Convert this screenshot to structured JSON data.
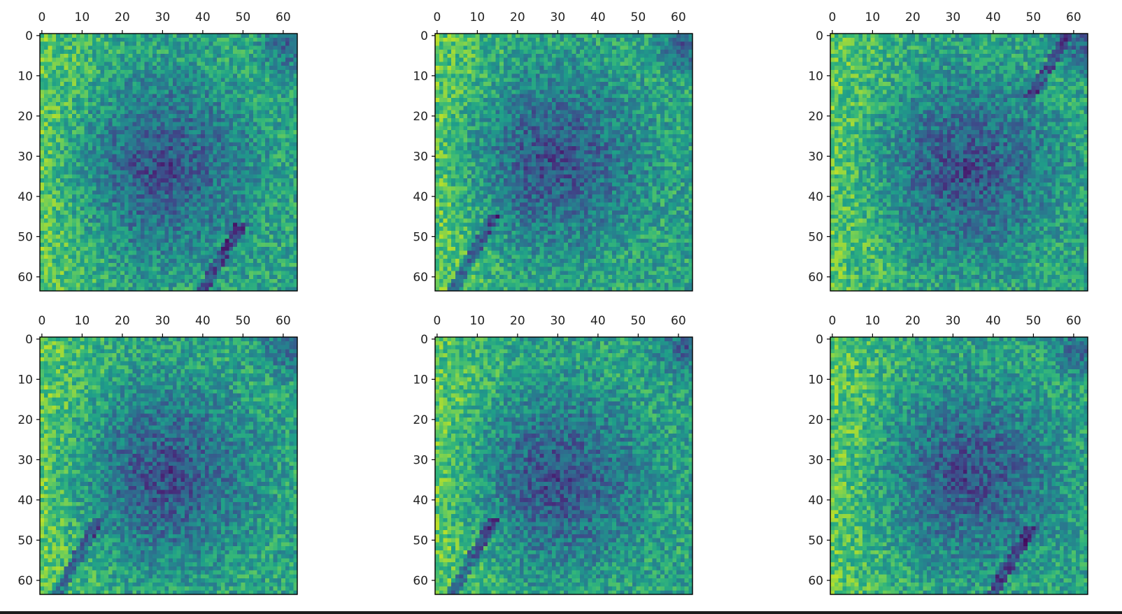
{
  "chart_data": {
    "type": "heatmap",
    "layout": "2x3 grid of image panels",
    "colormap": "viridis",
    "grid": false,
    "image_shape": [
      64,
      64
    ],
    "x_axis_position": "top",
    "xticks": [
      "0",
      "10",
      "20",
      "30",
      "40",
      "50",
      "60"
    ],
    "yticks": [
      "0",
      "10",
      "20",
      "30",
      "40",
      "50",
      "60"
    ],
    "xlim": [
      -0.5,
      63.5
    ],
    "ylim": [
      63.5,
      -0.5
    ],
    "panels": [
      {
        "position": "row 1, col 1",
        "dark_center": [
          30,
          33
        ],
        "dark_corner": "top-right",
        "bright_edge": "left",
        "streak": "lower-right diagonal"
      },
      {
        "position": "row 1, col 2",
        "dark_center": [
          29,
          31
        ],
        "dark_corner": "top-right",
        "bright_edge": "left",
        "streak": "lower-left diagonal"
      },
      {
        "position": "row 1, col 3",
        "dark_center": [
          33,
          33
        ],
        "dark_corner": "top-right",
        "bright_edge": "left",
        "streak": "upper-right curve"
      },
      {
        "position": "row 2, col 1",
        "dark_center": [
          31,
          34
        ],
        "dark_corner": "top-right",
        "bright_edge": "left",
        "streak": "lower-left diagonal"
      },
      {
        "position": "row 2, col 2",
        "dark_center": [
          30,
          35
        ],
        "dark_corner": "top-right",
        "bright_edge": "left",
        "streak": "lower-left diagonal"
      },
      {
        "position": "row 2, col 3",
        "dark_center": [
          34,
          34
        ],
        "dark_corner": "top-right",
        "bright_edge": "left",
        "streak": "lower-right diagonal"
      }
    ]
  }
}
